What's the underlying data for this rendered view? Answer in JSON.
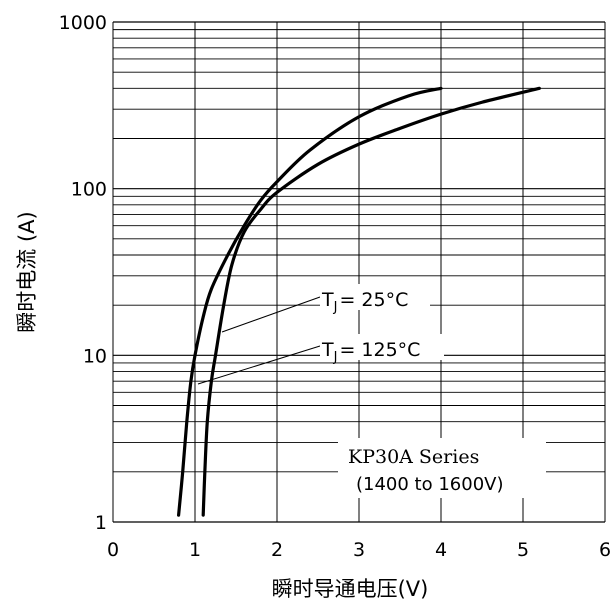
{
  "chart_data": {
    "type": "line",
    "xlabel": "瞬时导通电压(V)",
    "ylabel": "瞬时电流 (A)",
    "xlim": [
      0,
      6
    ],
    "ylim": [
      1,
      1000
    ],
    "y_scale": "log",
    "grid": true,
    "x_ticks": [
      "0",
      "1",
      "2",
      "3",
      "4",
      "5",
      "6"
    ],
    "y_ticks": [
      "1",
      "10",
      "100",
      "1000"
    ],
    "annotation": {
      "title": "KP30A Series",
      "subtitle": "(1400 to 1600V)"
    },
    "series": [
      {
        "name": "TJ = 25°C",
        "label_main": "T",
        "label_sub": "J",
        "label_rest": "= 25°C",
        "points": [
          [
            0.8,
            1.1
          ],
          [
            0.85,
            2
          ],
          [
            0.9,
            4
          ],
          [
            0.95,
            7
          ],
          [
            1.0,
            10
          ],
          [
            1.1,
            17
          ],
          [
            1.2,
            25
          ],
          [
            1.4,
            40
          ],
          [
            1.6,
            60
          ],
          [
            1.8,
            85
          ],
          [
            2.0,
            110
          ],
          [
            2.4,
            170
          ],
          [
            3.0,
            270
          ],
          [
            3.6,
            360
          ],
          [
            4.0,
            400
          ]
        ]
      },
      {
        "name": "TJ = 125°C",
        "label_main": "T",
        "label_sub": "J",
        "label_rest": "= 125°C",
        "points": [
          [
            1.1,
            1.1
          ],
          [
            1.12,
            2
          ],
          [
            1.15,
            4
          ],
          [
            1.2,
            7
          ],
          [
            1.25,
            10
          ],
          [
            1.35,
            20
          ],
          [
            1.45,
            35
          ],
          [
            1.6,
            55
          ],
          [
            1.8,
            75
          ],
          [
            2.0,
            95
          ],
          [
            2.5,
            140
          ],
          [
            3.0,
            185
          ],
          [
            3.5,
            230
          ],
          [
            4.0,
            280
          ],
          [
            4.5,
            330
          ],
          [
            5.2,
            400
          ]
        ]
      }
    ]
  }
}
